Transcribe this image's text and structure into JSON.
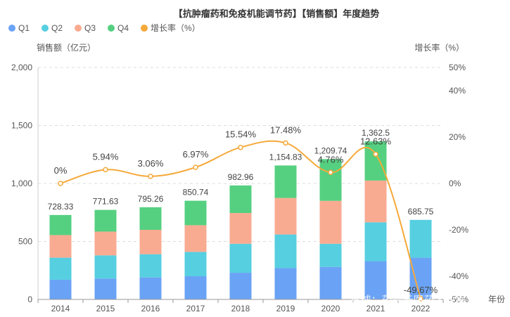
{
  "chart_data": {
    "type": "bar",
    "title": "【抗肿瘤药和免疫机能调节药】【销售额】年度趋势",
    "categories": [
      "2014",
      "2015",
      "2016",
      "2017",
      "2018",
      "2019",
      "2020",
      "2021",
      "2022"
    ],
    "series": [
      {
        "name": "Q1",
        "color": "#6aa3f5",
        "values": [
          170,
          180,
          190,
          200,
          230,
          270,
          280,
          330,
          360
        ]
      },
      {
        "name": "Q2",
        "color": "#56cfe0",
        "values": [
          190,
          200,
          200,
          210,
          250,
          290,
          200,
          335,
          326
        ]
      },
      {
        "name": "Q3",
        "color": "#f9ab91",
        "values": [
          195,
          205,
          210,
          230,
          265,
          315,
          370,
          360,
          0
        ]
      },
      {
        "name": "Q4",
        "color": "#55d080",
        "values": [
          173,
          187,
          195,
          211,
          238,
          280,
          360,
          338,
          0
        ]
      }
    ],
    "totals": [
      "728.33",
      "771.63",
      "795.26",
      "850.74",
      "982.96",
      "1,154.83",
      "1,209.74",
      "1,362.5",
      "685.75"
    ],
    "total_values": [
      728.33,
      771.63,
      795.26,
      850.74,
      982.96,
      1154.83,
      1209.74,
      1362.5,
      685.75
    ],
    "growth": {
      "name": "增长率（%）",
      "color": "#f5a93a",
      "values": [
        0,
        5.94,
        3.06,
        6.97,
        15.54,
        17.48,
        4.76,
        12.63,
        -49.67
      ],
      "labels": [
        "0%",
        "5.94%",
        "3.06%",
        "6.97%",
        "15.54%",
        "17.48%",
        "4.76%",
        "12.63%",
        "-49.67%"
      ]
    },
    "ylabel": "销售额（亿元）",
    "y2label": "增长率（%）",
    "xlabel": "年份",
    "ylim": [
      0,
      2000
    ],
    "yticks": [
      "0",
      "500",
      "1,000",
      "1,500",
      "2,000"
    ],
    "ytick_values": [
      0,
      500,
      1000,
      1500,
      2000
    ],
    "y2lim": [
      -50,
      50
    ],
    "y2ticks": [
      "-50%",
      "-40%",
      "-20%",
      "0%",
      "20%",
      "40%",
      "50%"
    ],
    "y2tick_values": [
      -50,
      -40,
      -20,
      0,
      20,
      40,
      50
    ],
    "grid": true,
    "legend": "top-left"
  },
  "watermark": "雪球：药融云医药大数据"
}
